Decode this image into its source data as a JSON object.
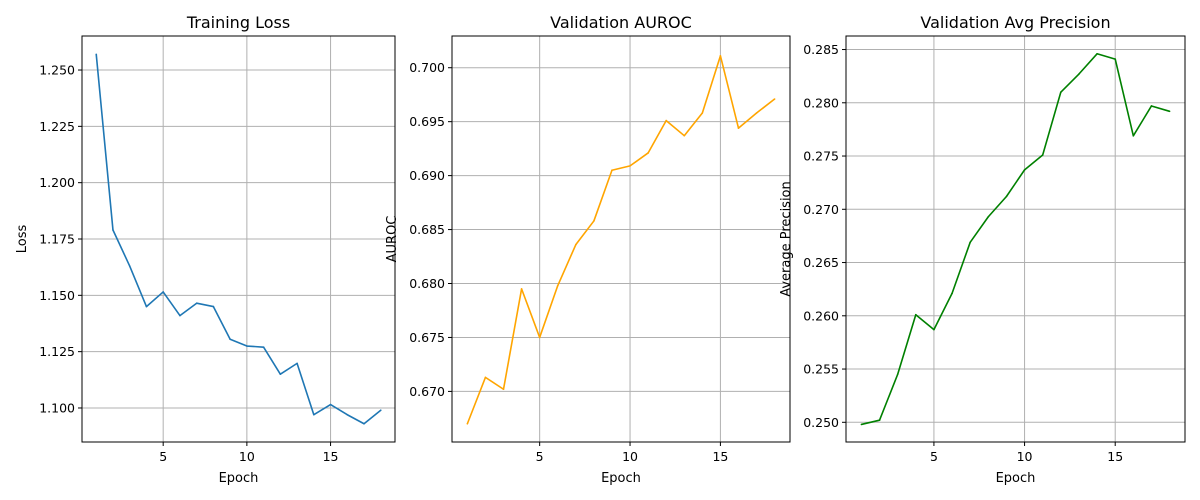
{
  "chart_data": [
    {
      "type": "line",
      "title": "Training Loss",
      "xlabel": "Epoch",
      "ylabel": "Loss",
      "color": "#1f77b4",
      "grid": true,
      "xlim": [
        0.15,
        18.85
      ],
      "ylim": [
        1.0849,
        1.2651
      ],
      "xticks": [
        5,
        10,
        15
      ],
      "xtick_labels": [
        "5",
        "10",
        "15"
      ],
      "yticks": [
        1.1,
        1.125,
        1.15,
        1.175,
        1.2,
        1.225,
        1.25
      ],
      "ytick_labels": [
        "1.100",
        "1.125",
        "1.150",
        "1.175",
        "1.200",
        "1.225",
        "1.250"
      ],
      "x": [
        1,
        2,
        3,
        4,
        5,
        6,
        7,
        8,
        9,
        10,
        11,
        12,
        13,
        14,
        15,
        16,
        17,
        18
      ],
      "values": [
        1.257,
        1.179,
        1.163,
        1.145,
        1.1515,
        1.141,
        1.1465,
        1.145,
        1.1305,
        1.1275,
        1.127,
        1.115,
        1.1198,
        1.097,
        1.1015,
        1.097,
        1.093,
        1.099
      ]
    },
    {
      "type": "line",
      "title": "Validation AUROC",
      "xlabel": "Epoch",
      "ylabel": "AUROC",
      "color": "#ffa500",
      "grid": true,
      "xlim": [
        0.15,
        18.85
      ],
      "ylim": [
        0.66531,
        0.70294
      ],
      "xticks": [
        5,
        10,
        15
      ],
      "xtick_labels": [
        "5",
        "10",
        "15"
      ],
      "yticks": [
        0.67,
        0.675,
        0.68,
        0.685,
        0.69,
        0.695,
        0.7
      ],
      "ytick_labels": [
        "0.670",
        "0.675",
        "0.680",
        "0.685",
        "0.690",
        "0.695",
        "0.700"
      ],
      "x": [
        1,
        2,
        3,
        4,
        5,
        6,
        7,
        8,
        9,
        10,
        11,
        12,
        13,
        14,
        15,
        16,
        17,
        18
      ],
      "values": [
        0.667,
        0.6713,
        0.6702,
        0.6795,
        0.675,
        0.6798,
        0.6836,
        0.6858,
        0.6905,
        0.6909,
        0.6921,
        0.6951,
        0.6937,
        0.6958,
        0.7011,
        0.6944,
        0.6958,
        0.6971
      ]
    },
    {
      "type": "line",
      "title": "Validation Avg Precision",
      "xlabel": "Epoch",
      "ylabel": "Average Precision",
      "color": "#008000",
      "grid": true,
      "xlim": [
        0.15,
        18.85
      ],
      "ylim": [
        0.24815,
        0.28627
      ],
      "xticks": [
        5,
        10,
        15
      ],
      "xtick_labels": [
        "5",
        "10",
        "15"
      ],
      "yticks": [
        0.25,
        0.255,
        0.26,
        0.265,
        0.27,
        0.275,
        0.28,
        0.285
      ],
      "ytick_labels": [
        "0.250",
        "0.255",
        "0.260",
        "0.265",
        "0.270",
        "0.275",
        "0.280",
        "0.285"
      ],
      "x": [
        1,
        2,
        3,
        4,
        5,
        6,
        7,
        8,
        9,
        10,
        11,
        12,
        13,
        14,
        15,
        16,
        17,
        18
      ],
      "values": [
        0.2498,
        0.2502,
        0.2545,
        0.2601,
        0.2587,
        0.2621,
        0.2669,
        0.2693,
        0.2712,
        0.2737,
        0.2751,
        0.281,
        0.2827,
        0.2846,
        0.2841,
        0.2769,
        0.2797,
        0.2792
      ]
    }
  ]
}
